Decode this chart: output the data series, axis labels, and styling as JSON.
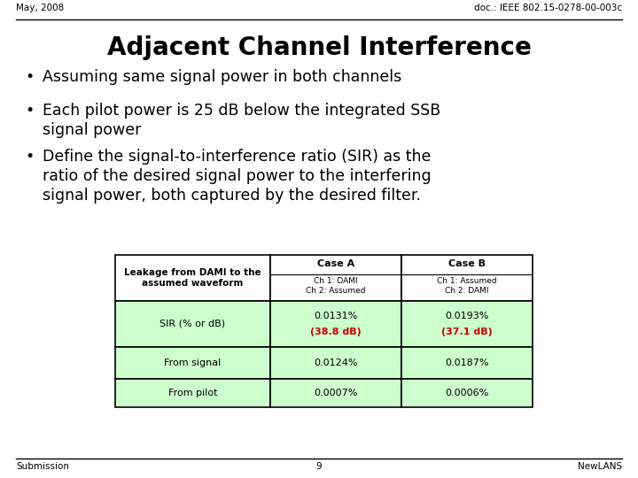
{
  "header_left": "May, 2008",
  "header_right": "doc.: IEEE 802.15-0278-00-003c",
  "title": "Adjacent Channel Interference",
  "footer_left": "Submission",
  "footer_center": "9",
  "footer_right": "NewLANS",
  "table": {
    "row0_label": "Leakage from DAMI to the\nassumed waveform",
    "row0_caseA": "Ch 1: DAMI\nCh 2: Assumed",
    "row0_caseB": "Ch 1: Assumed\nCh 2: DAMI",
    "row1_label": "SIR (% or dB)",
    "row1_caseA_black": "0.0131%",
    "row1_caseA_red": "(38.8 dB)",
    "row1_caseB_black": "0.0193%",
    "row1_caseB_red": "(37.1 dB)",
    "row2_label": "From signal",
    "row2_caseA": "0.0124%",
    "row2_caseB": "0.0187%",
    "row3_label": "From pilot",
    "row3_caseA": "0.0007%",
    "row3_caseB": "0.0006%"
  },
  "bg_color": "#ffffff",
  "table_header_bg": "#ffffff",
  "table_data_bg": "#ccffcc",
  "red_color": "#cc0000"
}
